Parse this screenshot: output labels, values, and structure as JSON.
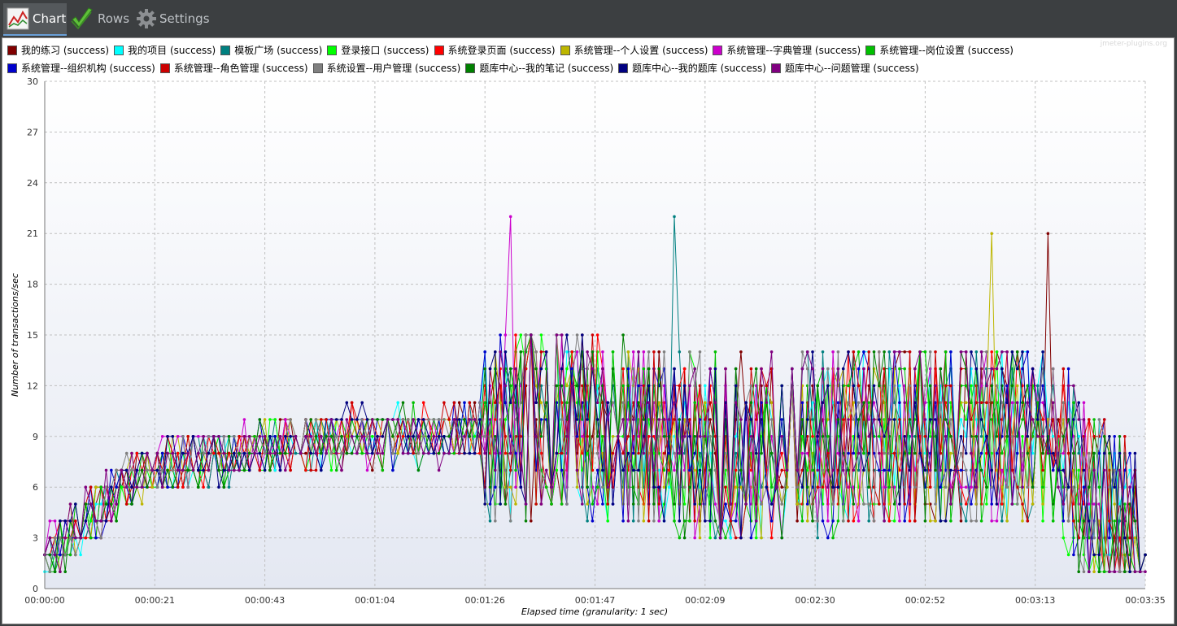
{
  "toolbar": {
    "tabs": [
      {
        "label": "Chart",
        "icon": "line-chart-icon",
        "active": true
      },
      {
        "label": "Rows",
        "icon": "checkmark-icon",
        "active": false
      },
      {
        "label": "Settings",
        "icon": "gear-icon",
        "active": false
      }
    ]
  },
  "watermark": "jmeter-plugins.org",
  "chart_data": {
    "type": "line",
    "title": "",
    "xlabel": "Elapsed time (granularity: 1 sec)",
    "ylabel": "Number of transactions/sec",
    "ylim": [
      0,
      30
    ],
    "yticks": [
      0,
      3,
      6,
      9,
      12,
      15,
      18,
      21,
      24,
      27,
      30
    ],
    "xlim_seconds": [
      0,
      215
    ],
    "xticks": [
      "00:00:00",
      "00:00:21",
      "00:00:43",
      "00:01:04",
      "00:01:26",
      "00:01:47",
      "00:02:09",
      "00:02:30",
      "00:02:52",
      "00:03:13",
      "00:03:35"
    ],
    "grid": true,
    "legend_position": "top",
    "series": [
      {
        "name": "我的练习 (success)",
        "color": "#800000",
        "profile": {
          "base": [
            2,
            7,
            8,
            9,
            9,
            10,
            9,
            8,
            9,
            9,
            9,
            2
          ],
          "peak": 21,
          "peak_at": 196
        }
      },
      {
        "name": "我的项目 (success)",
        "color": "#00ffff",
        "profile": {
          "base": [
            1,
            7,
            8,
            9,
            9,
            10,
            9,
            8,
            9,
            9,
            9,
            2
          ]
        }
      },
      {
        "name": "模板广场 (success)",
        "color": "#008080",
        "profile": {
          "base": [
            2,
            7,
            8,
            9,
            9,
            10,
            9,
            8,
            9,
            9,
            9,
            2
          ],
          "peak": 22,
          "peak_at": 123
        }
      },
      {
        "name": "登录接口 (success)",
        "color": "#00ff00",
        "profile": {
          "base": [
            2,
            7,
            8,
            9,
            9,
            10,
            9,
            8,
            9,
            9,
            9,
            2
          ]
        }
      },
      {
        "name": "系统登录页面 (success)",
        "color": "#ff0000",
        "profile": {
          "base": [
            2,
            7,
            8,
            9,
            9,
            10,
            9,
            8,
            9,
            9,
            9,
            2
          ]
        }
      },
      {
        "name": "系统管理--个人设置 (success)",
        "color": "#bdb600",
        "profile": {
          "base": [
            2,
            7,
            8,
            9,
            9,
            10,
            9,
            8,
            9,
            9,
            9,
            2
          ],
          "peak": 21,
          "peak_at": 185
        }
      },
      {
        "name": "系统管理--字典管理 (success)",
        "color": "#cc00cc",
        "profile": {
          "base": [
            2,
            7,
            8,
            9,
            9,
            10,
            9,
            8,
            9,
            9,
            9,
            2
          ],
          "peak": 22,
          "peak_at": 91
        }
      },
      {
        "name": "系统管理--岗位设置 (success)",
        "color": "#00c000",
        "profile": {
          "base": [
            2,
            7,
            8,
            9,
            9,
            10,
            9,
            8,
            9,
            9,
            9,
            2
          ]
        }
      },
      {
        "name": "系统管理--组织机构 (success)",
        "color": "#0000cc",
        "profile": {
          "base": [
            2,
            7,
            8,
            9,
            9,
            10,
            9,
            8,
            9,
            9,
            9,
            2
          ]
        }
      },
      {
        "name": "系统管理--角色管理 (success)",
        "color": "#cc0000",
        "profile": {
          "base": [
            2,
            7,
            8,
            9,
            9,
            10,
            9,
            8,
            9,
            9,
            9,
            2
          ]
        }
      },
      {
        "name": "系统设置--用户管理 (success)",
        "color": "#808080",
        "profile": {
          "base": [
            2,
            7,
            8,
            9,
            9,
            10,
            9,
            8,
            9,
            9,
            9,
            2
          ]
        }
      },
      {
        "name": "题库中心--我的笔记 (success)",
        "color": "#008000",
        "profile": {
          "base": [
            2,
            7,
            8,
            9,
            9,
            10,
            9,
            8,
            9,
            9,
            9,
            2
          ]
        }
      },
      {
        "name": "题库中心--我的题库 (success)",
        "color": "#000080",
        "profile": {
          "base": [
            2,
            7,
            8,
            9,
            9,
            10,
            9,
            8,
            9,
            9,
            9,
            2
          ]
        }
      },
      {
        "name": "题库中心--问题管理 (success)",
        "color": "#800080",
        "profile": {
          "base": [
            2,
            7,
            8,
            9,
            9,
            10,
            9,
            8,
            9,
            9,
            9,
            1
          ]
        }
      }
    ]
  }
}
